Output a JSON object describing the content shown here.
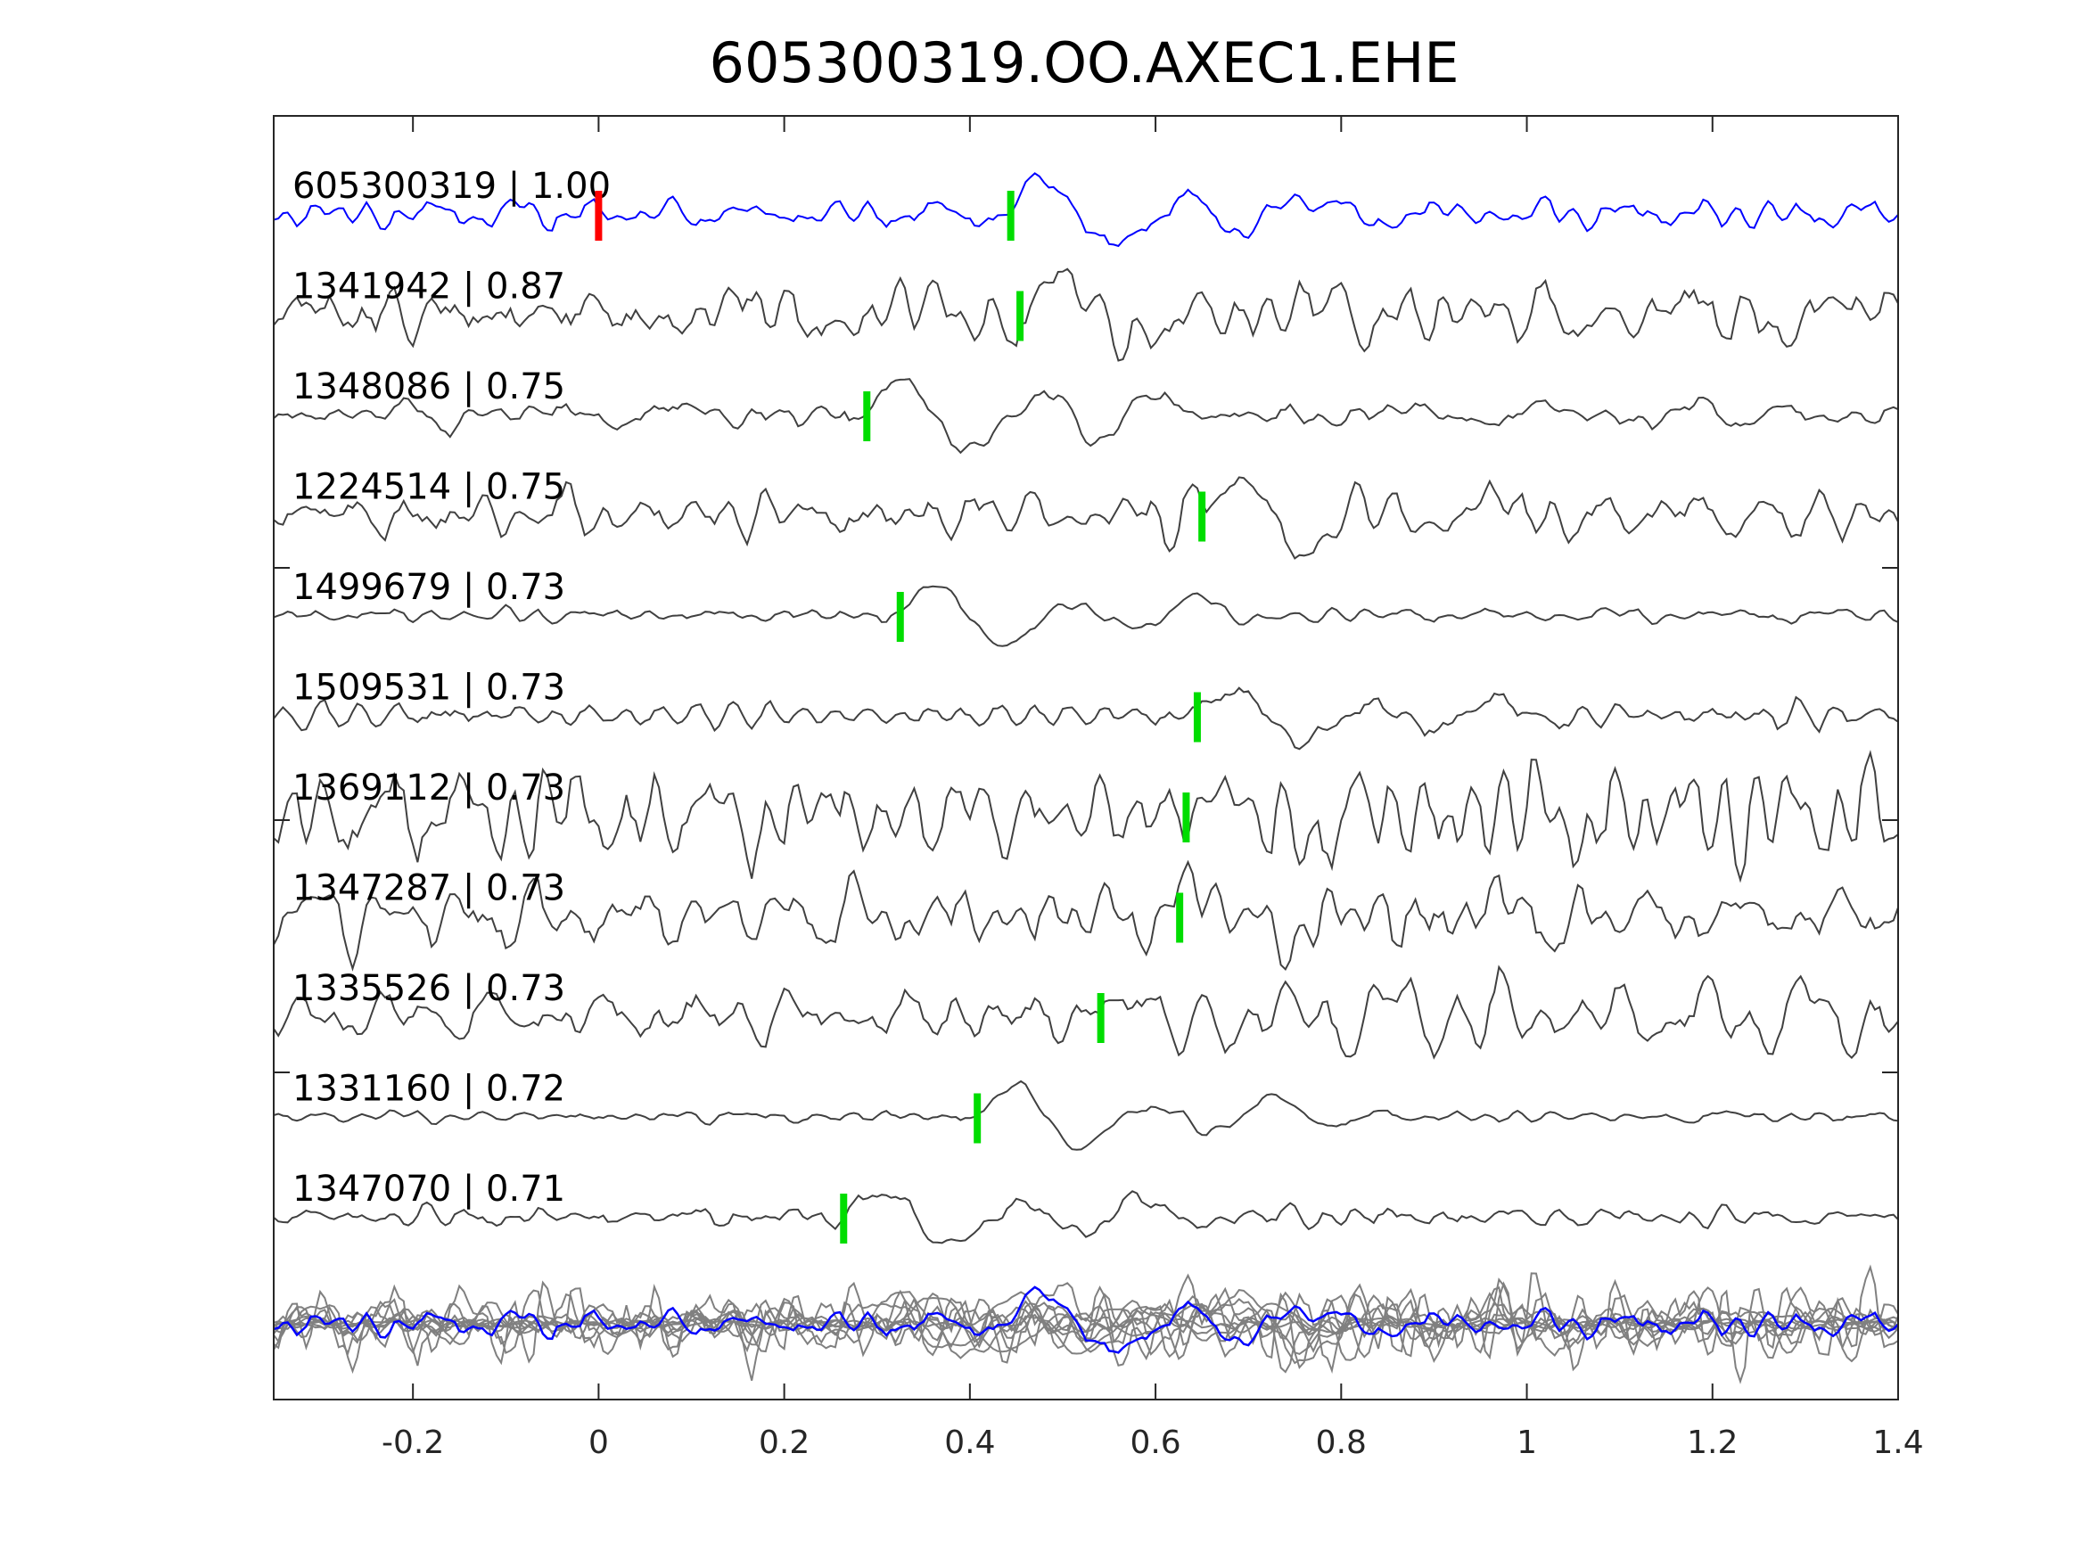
{
  "chart_data": {
    "type": "line",
    "title": "605300319.OO.AXEC1.EHE",
    "xlabel": "",
    "ylabel": "",
    "xlim": [
      -0.35,
      1.4
    ],
    "xticks": [
      -0.2,
      0,
      0.2,
      0.4,
      0.6,
      0.8,
      1,
      1.2,
      1.4
    ],
    "xtick_labels": [
      "-0.2",
      "0",
      "0.2",
      "0.4",
      "0.6",
      "0.8",
      "1",
      "1.2",
      "1.4"
    ],
    "grid": false,
    "reference_color": "#0000ff",
    "trace_color": "#404040",
    "stack_color": "#808080",
    "pick_color": "#00dd00",
    "reference_pick_color": "#ff0000",
    "reference_pick_time": 0,
    "traces": [
      {
        "label": "605300319 | 1.00",
        "id": "605300319",
        "cc": 1.0,
        "pick_time": 0.444,
        "reference": true
      },
      {
        "label": "1341942 | 0.87",
        "id": "1341942",
        "cc": 0.87,
        "pick_time": 0.454
      },
      {
        "label": "1348086 | 0.75",
        "id": "1348086",
        "cc": 0.75,
        "pick_time": 0.289
      },
      {
        "label": "1224514 | 0.75",
        "id": "1224514",
        "cc": 0.75,
        "pick_time": 0.65
      },
      {
        "label": "1499679 | 0.73",
        "id": "1499679",
        "cc": 0.73,
        "pick_time": 0.325
      },
      {
        "label": "1509531 | 0.73",
        "id": "1509531",
        "cc": 0.73,
        "pick_time": 0.645
      },
      {
        "label": "1369112 | 0.73",
        "id": "1369112",
        "cc": 0.73,
        "pick_time": 0.633
      },
      {
        "label": "1347287 | 0.73",
        "id": "1347287",
        "cc": 0.73,
        "pick_time": 0.626
      },
      {
        "label": "1335526 | 0.73",
        "id": "1335526",
        "cc": 0.73,
        "pick_time": 0.541
      },
      {
        "label": "1331160 | 0.72",
        "id": "1331160",
        "cc": 0.72,
        "pick_time": 0.408
      },
      {
        "label": "1347070 | 0.71",
        "id": "1347070",
        "cc": 0.71,
        "pick_time": 0.264
      }
    ]
  }
}
